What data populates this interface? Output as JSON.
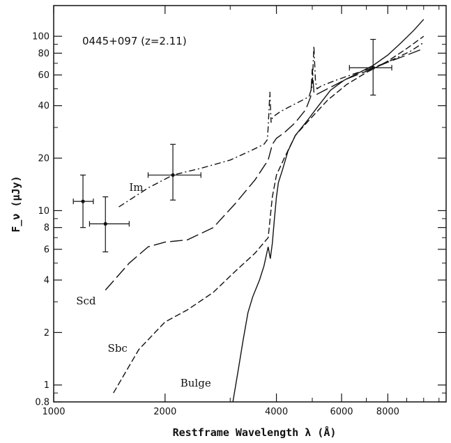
{
  "chart_data": {
    "type": "line",
    "title": "0445+097   (z=2.11)",
    "xlabel": "Restframe Wavelength λ  (Å)",
    "ylabel": "F_ν (μJy)",
    "xscale": "log",
    "yscale": "log",
    "xlim": [
      1000,
      11500
    ],
    "ylim": [
      0.8,
      150
    ],
    "x_ticks": [
      1000,
      2000,
      4000,
      6000,
      8000
    ],
    "y_ticks": [
      0.8,
      1,
      2,
      4,
      6,
      8,
      10,
      20,
      40,
      60,
      80,
      100
    ],
    "grid": false,
    "series": [
      {
        "name": "Im",
        "style": "dash-dot",
        "x": [
          1500,
          1800,
          2100,
          2500,
          3000,
          3400,
          3700,
          3780,
          3800,
          3840,
          3870,
          3900,
          3950,
          4100,
          4300,
          4600,
          4900,
          5000,
          5050,
          5100,
          5150,
          5300,
          5800,
          6500,
          7300,
          8200,
          9200,
          10000
        ],
        "values": [
          10.5,
          13.5,
          16.0,
          17.5,
          19.5,
          22.0,
          24.0,
          25.5,
          30.0,
          48.0,
          32.0,
          34.0,
          35.0,
          37.0,
          39.0,
          42.0,
          45.0,
          52.0,
          88.0,
          55.0,
          50.0,
          52.0,
          56.0,
          61.0,
          66.0,
          73.0,
          82.0,
          92.0
        ]
      },
      {
        "name": "Scd",
        "style": "long-dash",
        "x": [
          1380,
          1600,
          1800,
          2000,
          2300,
          2700,
          3100,
          3500,
          3800,
          3900,
          4000,
          4200,
          4500,
          4800,
          4950,
          5000,
          5050,
          5100,
          5500,
          6200,
          7000,
          8000,
          9000,
          10000
        ],
        "values": [
          3.5,
          5.0,
          6.2,
          6.6,
          6.8,
          8.0,
          11.0,
          15.0,
          19.5,
          24.0,
          26.0,
          28.0,
          32.0,
          38.0,
          45.0,
          65.0,
          48.0,
          46.0,
          50.0,
          57.0,
          63.0,
          71.0,
          78.0,
          85.0
        ]
      },
      {
        "name": "Sbc",
        "style": "dash",
        "x": [
          1450,
          1700,
          2000,
          2300,
          2700,
          3100,
          3500,
          3800,
          3900,
          4000,
          4200,
          4500,
          4900,
          5500,
          6200,
          7000,
          8000,
          9000,
          10000
        ],
        "values": [
          0.9,
          1.6,
          2.3,
          2.7,
          3.4,
          4.5,
          5.7,
          7.0,
          12.0,
          16.0,
          20.0,
          27.0,
          33.0,
          43.0,
          53.0,
          62.0,
          72.0,
          85.0,
          100.0
        ]
      },
      {
        "name": "Bulge",
        "style": "solid",
        "x": [
          3050,
          3150,
          3250,
          3350,
          3450,
          3600,
          3700,
          3800,
          3850,
          3900,
          3950,
          4000,
          4050,
          4150,
          4300,
          4500,
          4800,
          5200,
          5600,
          6100,
          6700,
          7300,
          8000,
          8700,
          9400,
          10000
        ],
        "values": [
          0.8,
          1.2,
          1.8,
          2.6,
          3.2,
          4.0,
          4.8,
          6.2,
          5.3,
          6.5,
          9.0,
          12.0,
          14.5,
          17.0,
          22.0,
          27.0,
          32.0,
          40.0,
          49.0,
          56.0,
          62.0,
          68.0,
          78.0,
          92.0,
          108.0,
          125.0
        ]
      }
    ],
    "observations": [
      {
        "x": 1200,
        "y": 11.3,
        "xerr": [
          1130,
          1280
        ],
        "yerr": [
          8.0,
          16.0
        ]
      },
      {
        "x": 1380,
        "y": 8.4,
        "xerr": [
          1250,
          1600
        ],
        "yerr": [
          5.8,
          12.0
        ]
      },
      {
        "x": 2100,
        "y": 16.0,
        "xerr": [
          1800,
          2500
        ],
        "yerr": [
          11.5,
          24.0
        ]
      },
      {
        "x": 7300,
        "y": 66.0,
        "xerr": [
          6300,
          8200
        ],
        "yerr": [
          46.0,
          96.0
        ]
      }
    ],
    "labels": [
      {
        "text": "Im",
        "x": 1600,
        "y": 13.0
      },
      {
        "text": "Scd",
        "x": 1150,
        "y": 2.9
      },
      {
        "text": "Sbc",
        "x": 1400,
        "y": 1.55
      },
      {
        "text": "Bulge",
        "x": 2200,
        "y": 0.98
      }
    ]
  }
}
